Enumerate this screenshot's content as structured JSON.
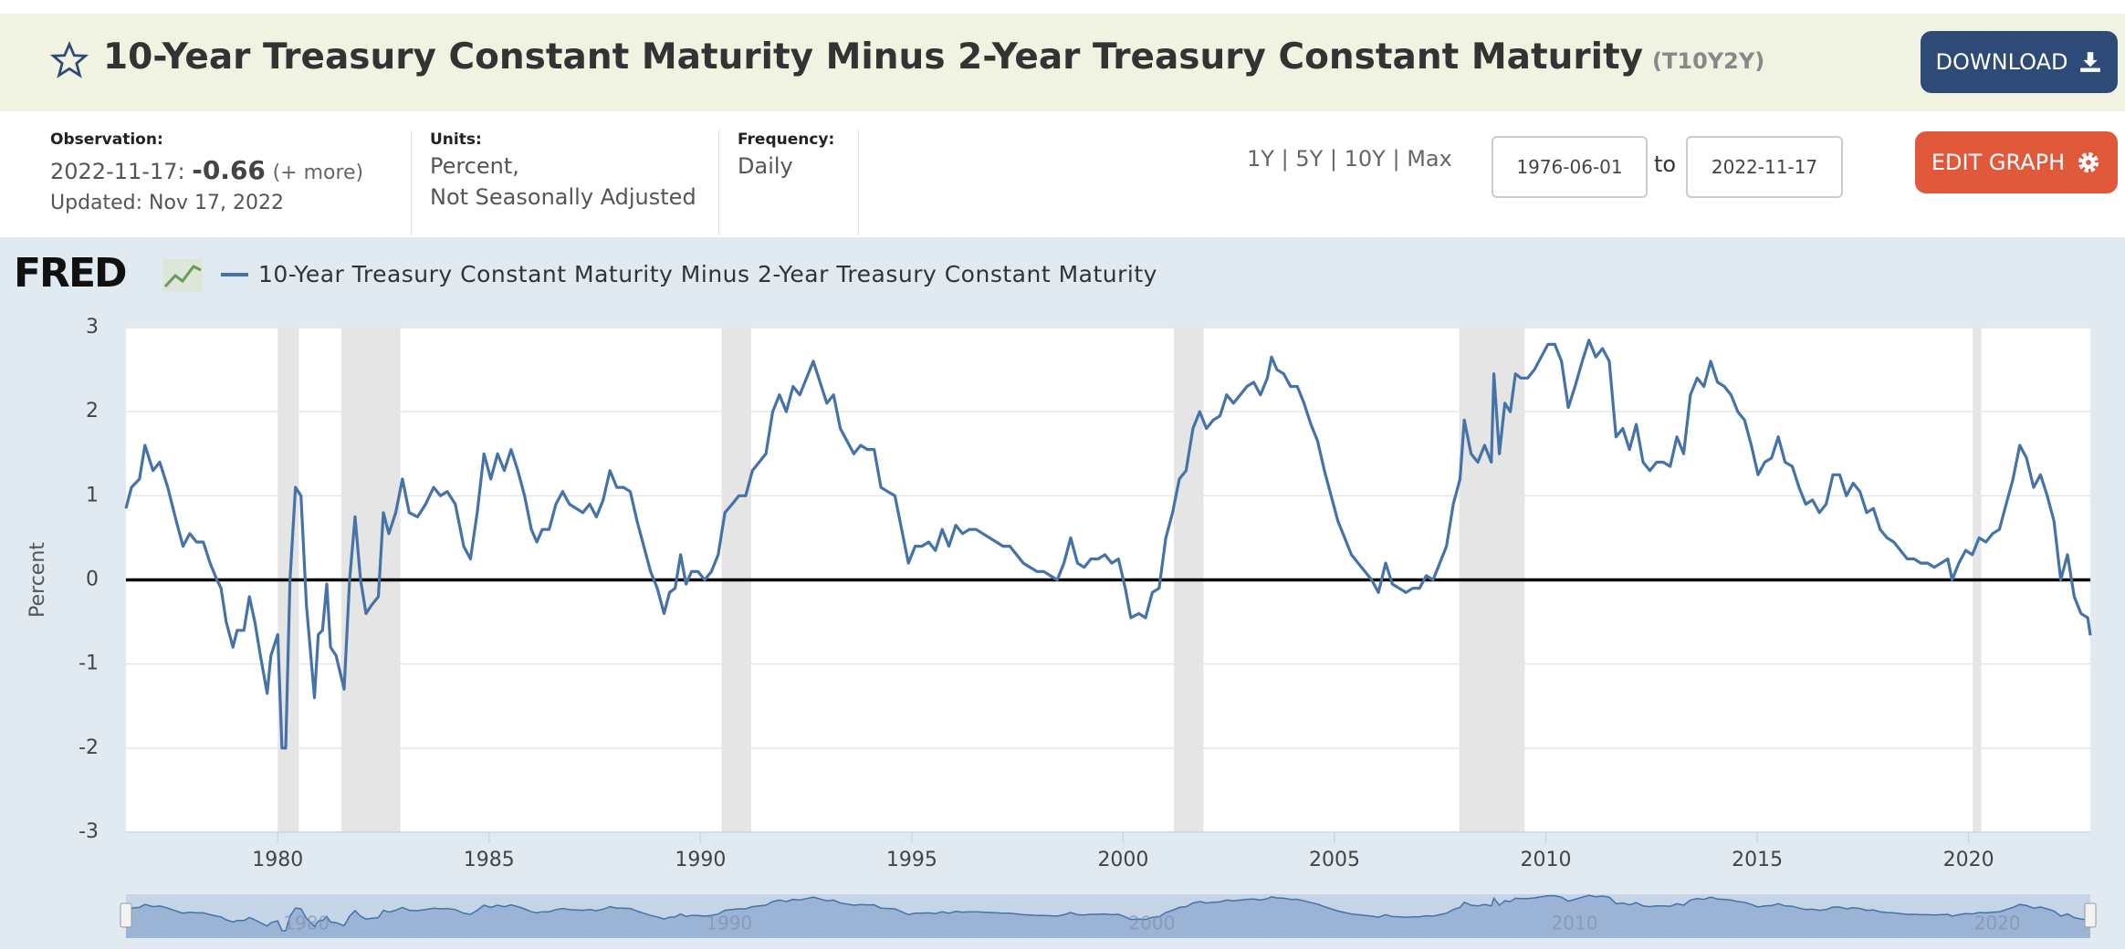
{
  "header": {
    "title": "10-Year Treasury Constant Maturity Minus 2-Year Treasury Constant Maturity",
    "series_id": "(T10Y2Y)",
    "download": "DOWNLOAD"
  },
  "info": {
    "observation_label": "Observation:",
    "observation_date": "2022-11-17:",
    "observation_value": "-0.66",
    "more": "(+ more)",
    "updated": "Updated: Nov 17, 2022",
    "units_label": "Units:",
    "units": [
      "Percent,",
      "Not Seasonally Adjusted"
    ],
    "frequency_label": "Frequency:",
    "frequency": "Daily"
  },
  "controls": {
    "ranges": [
      "1Y",
      "5Y",
      "10Y",
      "Max"
    ],
    "separator": "|",
    "start": "1976-06-01",
    "to": "to",
    "end": "2022-11-17",
    "edit": "EDIT GRAPH"
  },
  "logo": "FRED",
  "chart_data": {
    "type": "line",
    "y_label": "Percent",
    "grid": true,
    "xlim": [
      1976.41,
      2022.88
    ],
    "ylim": [
      -3,
      3
    ],
    "xticks": [
      1980,
      1985,
      1990,
      1995,
      2000,
      2005,
      2010,
      2015,
      2020
    ],
    "yticks": [
      -3,
      -2,
      -1,
      0,
      1,
      2,
      3
    ],
    "reference_line": 0,
    "recessions": [
      [
        1980.0,
        1980.5
      ],
      [
        1981.5,
        1982.9
      ],
      [
        1990.5,
        1991.2
      ],
      [
        2001.2,
        2001.9
      ],
      [
        2007.95,
        2009.5
      ],
      [
        2020.1,
        2020.3
      ]
    ],
    "navigator_xticks": [
      1980,
      1990,
      2000,
      2010,
      2020
    ],
    "x": [
      1976.41,
      1976.54,
      1976.73,
      1976.86,
      1977.05,
      1977.21,
      1977.4,
      1977.6,
      1977.76,
      1977.92,
      1978.08,
      1978.24,
      1978.4,
      1978.56,
      1978.66,
      1978.78,
      1978.94,
      1979.04,
      1979.2,
      1979.33,
      1979.46,
      1979.59,
      1979.75,
      1979.84,
      1980.0,
      1980.1,
      1980.19,
      1980.29,
      1980.42,
      1980.55,
      1980.68,
      1980.87,
      1980.96,
      1981.06,
      1981.16,
      1981.25,
      1981.38,
      1981.57,
      1981.7,
      1981.83,
      1981.96,
      1982.09,
      1982.22,
      1982.38,
      1982.5,
      1982.63,
      1982.79,
      1982.95,
      1983.11,
      1983.31,
      1983.5,
      1983.69,
      1983.85,
      1984.01,
      1984.2,
      1984.4,
      1984.56,
      1984.72,
      1984.88,
      1985.04,
      1985.2,
      1985.36,
      1985.52,
      1985.68,
      1985.84,
      1986.0,
      1986.13,
      1986.26,
      1986.42,
      1986.58,
      1986.74,
      1986.9,
      1987.06,
      1987.22,
      1987.38,
      1987.54,
      1987.7,
      1987.86,
      1988.02,
      1988.18,
      1988.34,
      1988.5,
      1988.66,
      1988.82,
      1988.98,
      1989.14,
      1989.27,
      1989.4,
      1989.53,
      1989.66,
      1989.79,
      1989.94,
      1990.1,
      1990.26,
      1990.42,
      1990.58,
      1990.75,
      1990.91,
      1991.07,
      1991.23,
      1991.39,
      1991.55,
      1991.71,
      1991.87,
      1992.03,
      1992.19,
      1992.35,
      1992.51,
      1992.67,
      1992.83,
      1992.99,
      1993.15,
      1993.31,
      1993.47,
      1993.63,
      1993.79,
      1993.95,
      1994.11,
      1994.27,
      1994.43,
      1994.6,
      1994.76,
      1994.92,
      1995.08,
      1995.24,
      1995.4,
      1995.56,
      1995.72,
      1995.88,
      1996.04,
      1996.2,
      1996.36,
      1996.52,
      1996.68,
      1996.84,
      1997.0,
      1997.16,
      1997.32,
      1997.48,
      1997.64,
      1997.8,
      1997.96,
      1998.12,
      1998.28,
      1998.44,
      1998.6,
      1998.76,
      1998.92,
      1999.08,
      1999.24,
      1999.41,
      1999.57,
      1999.73,
      1999.89,
      2000.05,
      2000.18,
      2000.37,
      2000.53,
      2000.69,
      2000.85,
      2001.01,
      2001.17,
      2001.33,
      2001.49,
      2001.65,
      2001.81,
      2001.97,
      2002.13,
      2002.29,
      2002.45,
      2002.61,
      2002.77,
      2002.93,
      2003.09,
      2003.25,
      2003.41,
      2003.51,
      2003.64,
      2003.8,
      2003.96,
      2004.12,
      2004.28,
      2004.44,
      2004.6,
      2004.76,
      2004.92,
      2005.08,
      2005.24,
      2005.4,
      2005.56,
      2005.72,
      2005.88,
      2006.04,
      2006.21,
      2006.37,
      2006.53,
      2006.69,
      2006.85,
      2007.01,
      2007.17,
      2007.33,
      2007.49,
      2007.65,
      2007.81,
      2007.97,
      2008.07,
      2008.23,
      2008.39,
      2008.55,
      2008.71,
      2008.77,
      2008.9,
      2009.03,
      2009.16,
      2009.28,
      2009.41,
      2009.57,
      2009.73,
      2009.89,
      2010.05,
      2010.21,
      2010.37,
      2010.53,
      2010.69,
      2010.86,
      2011.02,
      2011.18,
      2011.34,
      2011.5,
      2011.66,
      2011.82,
      2011.98,
      2012.14,
      2012.3,
      2012.46,
      2012.62,
      2012.78,
      2012.94,
      2013.1,
      2013.26,
      2013.42,
      2013.58,
      2013.74,
      2013.9,
      2014.06,
      2014.22,
      2014.38,
      2014.54,
      2014.7,
      2014.86,
      2015.02,
      2015.18,
      2015.34,
      2015.5,
      2015.66,
      2015.83,
      2015.99,
      2016.15,
      2016.31,
      2016.47,
      2016.63,
      2016.79,
      2016.95,
      2017.11,
      2017.27,
      2017.43,
      2017.59,
      2017.75,
      2017.91,
      2018.07,
      2018.23,
      2018.39,
      2018.55,
      2018.71,
      2018.87,
      2019.03,
      2019.19,
      2019.35,
      2019.51,
      2019.61,
      2019.77,
      2019.93,
      2020.09,
      2020.25,
      2020.41,
      2020.57,
      2020.73,
      2020.89,
      2021.05,
      2021.21,
      2021.37,
      2021.54,
      2021.7,
      2021.86,
      2022.02,
      2022.18,
      2022.34,
      2022.5,
      2022.66,
      2022.82,
      2022.88
    ],
    "series": [
      {
        "name": "10-Year Treasury Constant Maturity Minus 2-Year Treasury Constant Maturity",
        "color": "#4572a7",
        "values": [
          0.85,
          1.1,
          1.2,
          1.6,
          1.3,
          1.4,
          1.1,
          0.7,
          0.4,
          0.55,
          0.45,
          0.45,
          0.2,
          0.0,
          -0.1,
          -0.5,
          -0.8,
          -0.6,
          -0.6,
          -0.2,
          -0.5,
          -0.9,
          -1.35,
          -0.9,
          -0.65,
          -2.0,
          -2.0,
          0.0,
          1.1,
          1.0,
          -0.3,
          -1.4,
          -0.65,
          -0.6,
          -0.05,
          -0.8,
          -0.9,
          -1.3,
          0.0,
          0.75,
          0.0,
          -0.4,
          -0.3,
          -0.2,
          0.8,
          0.55,
          0.8,
          1.2,
          0.8,
          0.75,
          0.9,
          1.1,
          1.0,
          1.05,
          0.9,
          0.4,
          0.25,
          0.8,
          1.5,
          1.2,
          1.5,
          1.3,
          1.55,
          1.3,
          1.0,
          0.6,
          0.45,
          0.6,
          0.6,
          0.9,
          1.05,
          0.9,
          0.85,
          0.8,
          0.9,
          0.75,
          0.95,
          1.3,
          1.1,
          1.1,
          1.05,
          0.7,
          0.4,
          0.1,
          -0.1,
          -0.4,
          -0.15,
          -0.1,
          0.3,
          -0.05,
          0.1,
          0.1,
          0.0,
          0.1,
          0.3,
          0.8,
          0.9,
          1.0,
          1.0,
          1.3,
          1.4,
          1.5,
          2.0,
          2.2,
          2.0,
          2.3,
          2.2,
          2.4,
          2.6,
          2.35,
          2.1,
          2.2,
          1.8,
          1.65,
          1.5,
          1.6,
          1.55,
          1.55,
          1.1,
          1.05,
          1.0,
          0.6,
          0.2,
          0.4,
          0.4,
          0.45,
          0.35,
          0.6,
          0.4,
          0.65,
          0.55,
          0.6,
          0.6,
          0.55,
          0.5,
          0.45,
          0.4,
          0.4,
          0.3,
          0.2,
          0.15,
          0.1,
          0.1,
          0.05,
          0.0,
          0.2,
          0.5,
          0.2,
          0.15,
          0.25,
          0.25,
          0.3,
          0.2,
          0.25,
          -0.1,
          -0.45,
          -0.4,
          -0.45,
          -0.15,
          -0.1,
          0.5,
          0.8,
          1.2,
          1.3,
          1.8,
          2.0,
          1.8,
          1.9,
          1.95,
          2.2,
          2.1,
          2.2,
          2.3,
          2.35,
          2.2,
          2.4,
          2.65,
          2.5,
          2.45,
          2.3,
          2.3,
          2.1,
          1.85,
          1.65,
          1.3,
          1.0,
          0.7,
          0.5,
          0.3,
          0.2,
          0.1,
          0.0,
          -0.15,
          0.2,
          -0.05,
          -0.1,
          -0.15,
          -0.1,
          -0.1,
          0.05,
          0.0,
          0.2,
          0.4,
          0.9,
          1.2,
          1.9,
          1.5,
          1.4,
          1.6,
          1.4,
          2.45,
          1.5,
          2.1,
          2.0,
          2.45,
          2.4,
          2.4,
          2.5,
          2.65,
          2.8,
          2.8,
          2.6,
          2.05,
          2.3,
          2.6,
          2.85,
          2.65,
          2.75,
          2.6,
          1.7,
          1.8,
          1.55,
          1.85,
          1.4,
          1.3,
          1.4,
          1.4,
          1.35,
          1.7,
          1.5,
          2.2,
          2.4,
          2.3,
          2.6,
          2.35,
          2.3,
          2.2,
          2.0,
          1.9,
          1.6,
          1.25,
          1.4,
          1.45,
          1.7,
          1.4,
          1.35,
          1.1,
          0.9,
          0.95,
          0.8,
          0.9,
          1.25,
          1.25,
          1.0,
          1.15,
          1.05,
          0.8,
          0.85,
          0.6,
          0.5,
          0.45,
          0.35,
          0.25,
          0.25,
          0.2,
          0.2,
          0.15,
          0.2,
          0.25,
          0.0,
          0.2,
          0.35,
          0.3,
          0.5,
          0.45,
          0.55,
          0.6,
          0.9,
          1.2,
          1.6,
          1.45,
          1.1,
          1.25,
          1.0,
          0.7,
          0.0,
          0.3,
          -0.2,
          -0.4,
          -0.45,
          -0.66
        ]
      }
    ]
  }
}
